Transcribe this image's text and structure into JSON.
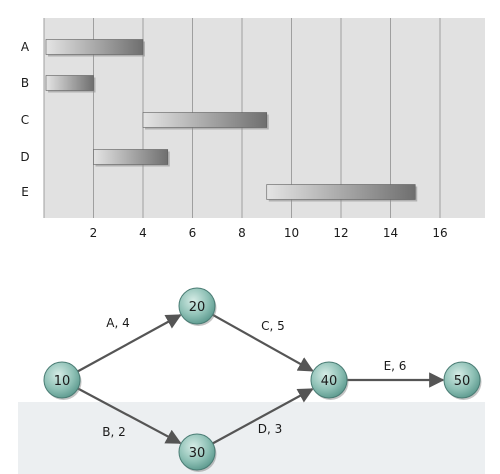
{
  "colors": {
    "chart_bg": "#e1e1e1",
    "grid": "#9f9f9f",
    "bar_light": "#e4e4e4",
    "bar_dark": "#6f6f6f",
    "node_fill": "#8fc1b6",
    "arrow": "#555555",
    "bottom_panel": "#eceff1"
  },
  "chart_data": {
    "type": "bar",
    "orientation": "horizontal-gantt",
    "categories": [
      "A",
      "B",
      "C",
      "D",
      "E"
    ],
    "series": [
      {
        "values": [
          {
            "task": "A",
            "start": 0,
            "end": 4
          },
          {
            "task": "B",
            "start": 0,
            "end": 2
          },
          {
            "task": "C",
            "start": 4,
            "end": 9
          },
          {
            "task": "D",
            "start": 2,
            "end": 5
          },
          {
            "task": "E",
            "start": 9,
            "end": 15
          }
        ]
      }
    ],
    "x_ticks": [
      "2",
      "4",
      "6",
      "8",
      "10",
      "12",
      "14",
      "16"
    ],
    "xlim": [
      0,
      17.8
    ],
    "grid": true,
    "title": "",
    "xlabel": "",
    "ylabel": ""
  },
  "network": {
    "nodes": [
      {
        "id": "n10",
        "label": "10"
      },
      {
        "id": "n20",
        "label": "20"
      },
      {
        "id": "n30",
        "label": "30"
      },
      {
        "id": "n40",
        "label": "40"
      },
      {
        "id": "n50",
        "label": "50"
      }
    ],
    "edges": [
      {
        "from": "n10",
        "to": "n20",
        "label": "A, 4"
      },
      {
        "from": "n10",
        "to": "n30",
        "label": "B, 2"
      },
      {
        "from": "n20",
        "to": "n40",
        "label": "C, 5"
      },
      {
        "from": "n30",
        "to": "n40",
        "label": "D, 3"
      },
      {
        "from": "n40",
        "to": "n50",
        "label": "E, 6"
      }
    ]
  }
}
